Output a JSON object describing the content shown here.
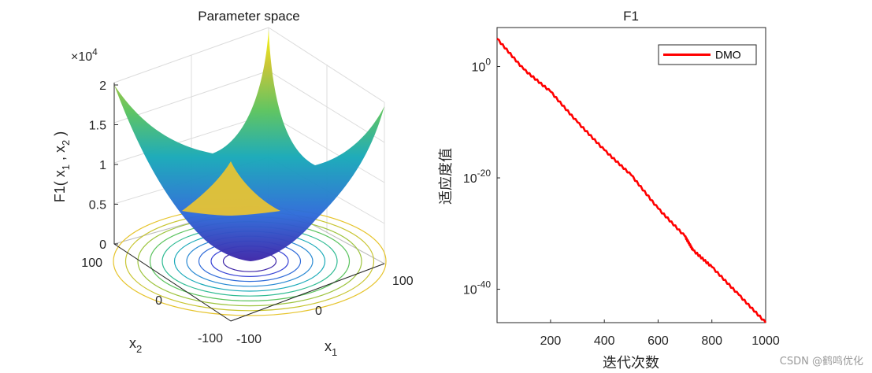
{
  "chart_data": [
    {
      "type": "surface",
      "title": "Parameter space",
      "function": "x1^2 + x2^2",
      "xlabel_main": "x",
      "xlabel_sub": "1",
      "ylabel_main": "x",
      "ylabel_sub": "2",
      "zlabel": {
        "prefix": "F1( x",
        "s1": "1",
        "mid": " , x",
        "s2": "2",
        "suffix": " )"
      },
      "xlim": [
        -100,
        100
      ],
      "ylim": [
        -100,
        100
      ],
      "zlim": [
        0,
        20000
      ],
      "z_exponent": {
        "base": "×10",
        "exp": "4"
      },
      "z_ticks": [
        "0",
        "0.5",
        "1",
        "1.5",
        "2"
      ],
      "x_ticks": [
        "-100",
        "0",
        "100"
      ],
      "y_ticks": [
        "-100",
        "0",
        "100"
      ],
      "colormap": "parula",
      "contour_levels": 10,
      "colors": [
        "#3e26a8",
        "#2f6bd9",
        "#18a9b8",
        "#5bc35e",
        "#c8c531",
        "#f9fb0e"
      ]
    },
    {
      "type": "line",
      "title": "F1",
      "xlabel": "迭代次数",
      "ylabel": "适应度值",
      "yscale": "log",
      "xlim": [
        1,
        1000
      ],
      "ylim_exp": [
        -46,
        7
      ],
      "x_ticks": [
        "200",
        "400",
        "600",
        "800",
        "1000"
      ],
      "y_ticks": [
        {
          "base": "10",
          "exp": "0"
        },
        {
          "base": "10",
          "exp": "-20"
        },
        {
          "base": "10",
          "exp": "-40"
        }
      ],
      "legend": {
        "position": "top-right"
      },
      "series": [
        {
          "name": "DMO",
          "color": "#ff0000",
          "x": [
            1,
            100,
            200,
            300,
            400,
            500,
            600,
            700,
            730,
            800,
            900,
            1000
          ],
          "log10_y": [
            5,
            -0.5,
            -4.5,
            -10,
            -15,
            -19.5,
            -25.5,
            -30.5,
            -33,
            -36,
            -41,
            -46
          ]
        }
      ]
    }
  ],
  "watermark": "CSDN @鹤鸣优化"
}
